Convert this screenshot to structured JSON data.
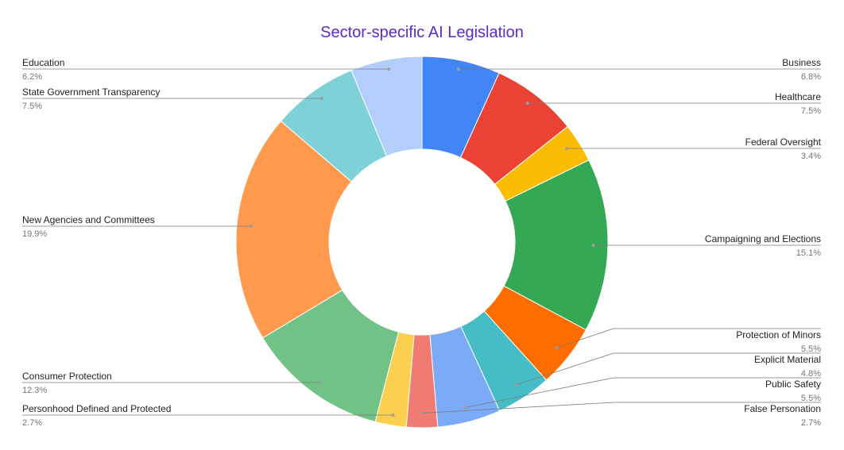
{
  "chart_data": {
    "type": "pie",
    "donut": true,
    "title": "Sector-specific AI Legislation",
    "start": "12 o'clock",
    "direction": "clockwise",
    "slices": [
      {
        "name": "Business",
        "percent": "6.8%",
        "value": 6.8,
        "color": "#4285f4",
        "side": "right"
      },
      {
        "name": "Healthcare",
        "percent": "7.5%",
        "value": 7.5,
        "color": "#ea4335",
        "side": "right"
      },
      {
        "name": "Federal Oversight",
        "percent": "3.4%",
        "value": 3.4,
        "color": "#fbbc04",
        "side": "right"
      },
      {
        "name": "Campaigning and Elections",
        "percent": "15.1%",
        "value": 15.1,
        "color": "#34a853",
        "side": "right"
      },
      {
        "name": "Protection of Minors",
        "percent": "5.5%",
        "value": 5.5,
        "color": "#ff6d01",
        "side": "right"
      },
      {
        "name": "Explicit Material",
        "percent": "4.8%",
        "value": 4.8,
        "color": "#46bdc6",
        "side": "right"
      },
      {
        "name": "Public Safety",
        "percent": "5.5%",
        "value": 5.5,
        "color": "#7baaf7",
        "side": "right"
      },
      {
        "name": "False Personation",
        "percent": "2.7%",
        "value": 2.7,
        "color": "#f07b72",
        "side": "right"
      },
      {
        "name": "Personhood Defined and Protected",
        "percent": "2.7%",
        "value": 2.7,
        "color": "#fcd04f",
        "side": "left"
      },
      {
        "name": "Consumer Protection",
        "percent": "12.3%",
        "value": 12.3,
        "color": "#71c287",
        "side": "left"
      },
      {
        "name": "New Agencies and Committees",
        "percent": "19.9%",
        "value": 19.9,
        "color": "#ff994d",
        "side": "left"
      },
      {
        "name": "State Government Transparency",
        "percent": "7.5%",
        "value": 7.5,
        "color": "#7ed1d7",
        "side": "left"
      },
      {
        "name": "Education",
        "percent": "6.2%",
        "value": 6.2,
        "color": "#b3cefb",
        "side": "left"
      }
    ]
  }
}
